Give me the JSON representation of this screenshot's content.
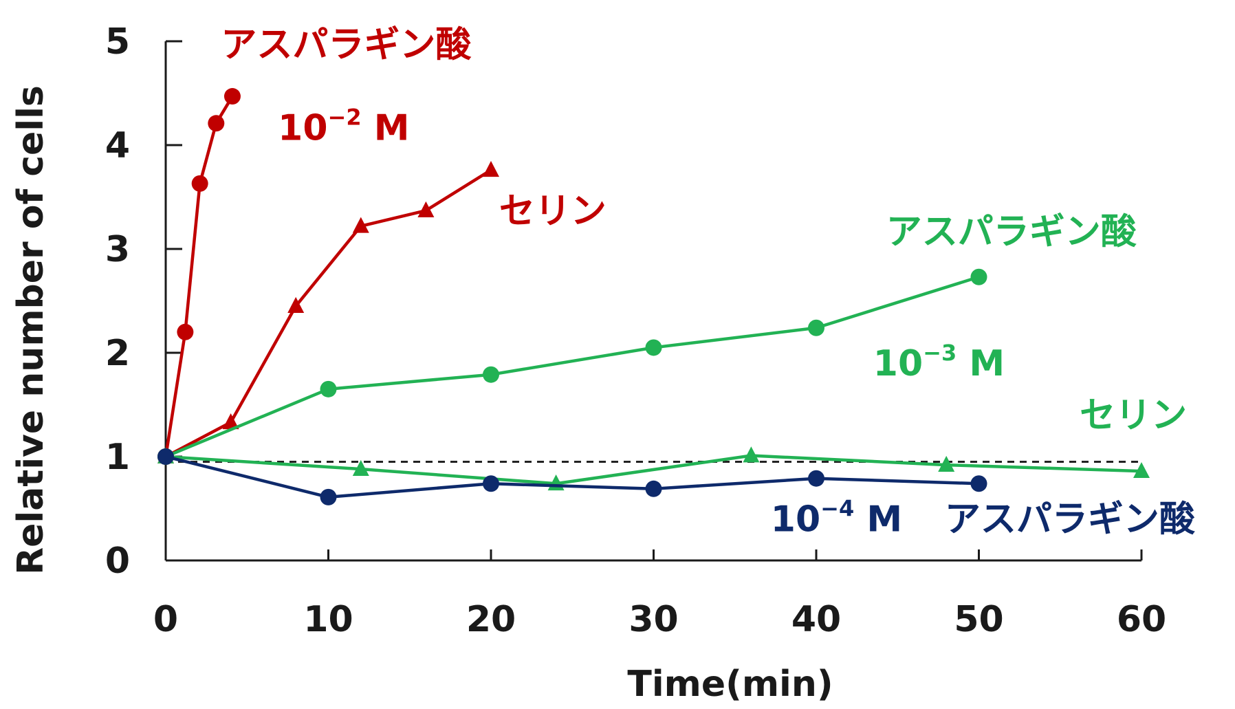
{
  "chart_data": {
    "type": "line",
    "xlabel": "Time(min)",
    "ylabel": "Relative  number of cells",
    "xlim": [
      0,
      60
    ],
    "ylim": [
      0,
      5
    ],
    "x_ticks": [
      "0",
      "10",
      "20",
      "30",
      "40",
      "50",
      "60"
    ],
    "y_ticks": [
      "0",
      "1",
      "2",
      "3",
      "4",
      "5"
    ],
    "reference_line": {
      "y": 0.95,
      "style": "dashed"
    },
    "series": [
      {
        "id": "asp-2",
        "color": "#c00000",
        "marker": "circle",
        "x": [
          0,
          1.2,
          2.1,
          3.1,
          4.1
        ],
        "y": [
          1.0,
          2.2,
          3.63,
          4.21,
          4.47
        ]
      },
      {
        "id": "ser-2",
        "color": "#c00000",
        "marker": "triangle",
        "x": [
          0,
          4,
          8,
          12,
          16,
          20
        ],
        "y": [
          1.0,
          1.33,
          2.45,
          3.22,
          3.37,
          3.76
        ]
      },
      {
        "id": "asp-3",
        "color": "#22b254",
        "marker": "circle",
        "x": [
          0,
          10,
          20,
          30,
          40,
          50
        ],
        "y": [
          1.0,
          1.65,
          1.79,
          2.05,
          2.24,
          2.73
        ]
      },
      {
        "id": "ser-3",
        "color": "#22b254",
        "marker": "triangle",
        "x": [
          0,
          12,
          24,
          36,
          48,
          60
        ],
        "y": [
          1.0,
          0.88,
          0.74,
          1.01,
          0.92,
          0.86
        ]
      },
      {
        "id": "asp-4",
        "color": "#0e2a6b",
        "marker": "circle",
        "x": [
          0,
          10,
          20,
          30,
          40,
          50
        ],
        "y": [
          1.0,
          0.61,
          0.74,
          0.69,
          0.79,
          0.74
        ]
      }
    ],
    "annotations": [
      {
        "id": "a1",
        "text": "アスパラギン酸",
        "color": "#c00000",
        "anchor_x": 3.4,
        "anchor_y": 4.85
      },
      {
        "id": "a2",
        "base": "10",
        "sup": "−2",
        "unit": " M",
        "color": "#c00000",
        "anchor_x": 6.9,
        "anchor_y": 4.05
      },
      {
        "id": "a3",
        "text": "セリン",
        "color": "#c00000",
        "anchor_x": 20.5,
        "anchor_y": 3.25
      },
      {
        "id": "a4",
        "text": "アスパラギン酸",
        "color": "#22b254",
        "anchor_x": 44.3,
        "anchor_y": 3.05
      },
      {
        "id": "a5",
        "base": "10",
        "sup": "−3",
        "unit": " M",
        "color": "#22b254",
        "anchor_x": 43.5,
        "anchor_y": 1.78
      },
      {
        "id": "a6",
        "text": "セリン",
        "color": "#22b254",
        "anchor_x": 56.2,
        "anchor_y": 1.28
      },
      {
        "id": "a7",
        "base": "10",
        "sup": "−4",
        "unit": " M",
        "color": "#0e2a6b",
        "anchor_x": 37.2,
        "anchor_y": 0.28
      },
      {
        "id": "a8",
        "text": "アスパラギン酸",
        "color": "#0e2a6b",
        "anchor_x": 47.9,
        "anchor_y": 0.28
      }
    ]
  }
}
